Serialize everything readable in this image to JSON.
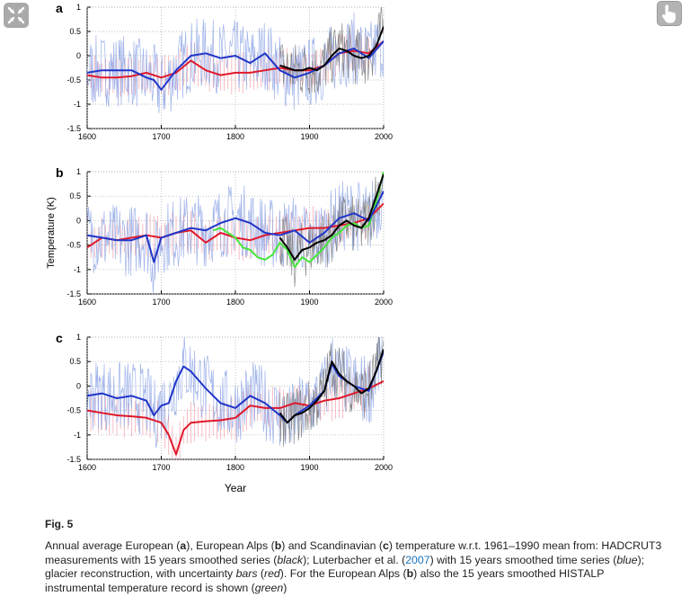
{
  "figure_label": "Fig. 5",
  "caption": {
    "p1": "Annual average European (",
    "b1": "a",
    "p2": "), European Alps (",
    "b2": "b",
    "p3": ") and Scandinavian (",
    "b3": "c",
    "p4": ") temperature w.r.t. 1961–1990 mean from: HADCRUT3 measurements with 15 years smoothed series (",
    "i1": "black",
    "p5": "); Luterbacher et al. (",
    "link": "2007",
    "p6": ") with 15 years smoothed time series (",
    "i2": "blue",
    "p7": "); glacier reconstruction, with uncertainty ",
    "i3": "bars",
    "p8": " (",
    "i4": "red",
    "p9": "). For the European Alps (",
    "b4": "b",
    "p10": ") also the 15 years smoothed HISTALP instrumental temperature record is shown (",
    "i5": "green",
    "p11": ")"
  },
  "icons": {
    "top_left": "expand-icon",
    "top_right": "touch-hand-icon"
  },
  "colors": {
    "blue": "#1f35c8",
    "red": "#e0182a",
    "black": "#000000",
    "green": "#46e63a",
    "light_blue": "#8ea6e6",
    "pink": "#f2a0a8",
    "grey": "#777777"
  },
  "chart_data": [
    {
      "type": "line",
      "panel_label": "a",
      "xlabel": "",
      "ylabel": "",
      "xlim": [
        1600,
        2000
      ],
      "ylim": [
        -1.5,
        1
      ],
      "xticks": [
        "1600",
        "1700",
        "1800",
        "1900",
        "2000"
      ],
      "yticks": [
        "1",
        "0.5",
        "0",
        "-0.5",
        "-1",
        "-1.5"
      ],
      "grid": true,
      "series": [
        {
          "color": "blue",
          "x": [
            1600,
            1620,
            1640,
            1660,
            1680,
            1690,
            1700,
            1720,
            1740,
            1760,
            1780,
            1800,
            1820,
            1830,
            1840,
            1860,
            1880,
            1900,
            1920,
            1940,
            1960,
            1980,
            2000
          ],
          "y": [
            -0.35,
            -0.3,
            -0.3,
            -0.3,
            -0.45,
            -0.5,
            -0.7,
            -0.3,
            0.0,
            0.05,
            -0.05,
            0.0,
            -0.15,
            -0.05,
            0.05,
            -0.3,
            -0.45,
            -0.35,
            -0.2,
            0.05,
            0.15,
            -0.05,
            0.3
          ]
        },
        {
          "color": "red",
          "x": [
            1600,
            1620,
            1640,
            1660,
            1680,
            1700,
            1720,
            1740,
            1760,
            1780,
            1800,
            1820,
            1840,
            1860,
            1880,
            1900,
            1920,
            1940,
            1960,
            1980,
            2000
          ],
          "y": [
            -0.4,
            -0.45,
            -0.45,
            -0.42,
            -0.35,
            -0.45,
            -0.35,
            -0.1,
            -0.3,
            -0.4,
            -0.35,
            -0.35,
            -0.3,
            -0.25,
            -0.3,
            -0.3,
            -0.2,
            0.05,
            0.1,
            0.05,
            0.3
          ]
        },
        {
          "color": "black",
          "x": [
            1860,
            1870,
            1880,
            1890,
            1900,
            1910,
            1920,
            1930,
            1940,
            1950,
            1960,
            1970,
            1980,
            1990,
            2000
          ],
          "y": [
            -0.2,
            -0.25,
            -0.3,
            -0.3,
            -0.25,
            -0.3,
            -0.2,
            0.0,
            0.15,
            0.1,
            0.0,
            -0.05,
            0.0,
            0.2,
            0.6
          ]
        }
      ]
    },
    {
      "type": "line",
      "panel_label": "b",
      "xlabel": "",
      "ylabel": "Temperature (K)",
      "xlim": [
        1600,
        2000
      ],
      "ylim": [
        -1.5,
        1
      ],
      "xticks": [
        "1600",
        "1700",
        "1800",
        "1900",
        "2000"
      ],
      "yticks": [
        "1",
        "0.5",
        "0",
        "-0.5",
        "-1",
        "-1.5"
      ],
      "grid": true,
      "series": [
        {
          "color": "blue",
          "x": [
            1600,
            1620,
            1640,
            1660,
            1680,
            1690,
            1700,
            1720,
            1740,
            1760,
            1780,
            1800,
            1820,
            1840,
            1860,
            1880,
            1900,
            1920,
            1940,
            1960,
            1980,
            2000
          ],
          "y": [
            -0.3,
            -0.35,
            -0.4,
            -0.4,
            -0.3,
            -0.85,
            -0.35,
            -0.25,
            -0.15,
            -0.2,
            -0.05,
            0.05,
            -0.05,
            -0.25,
            -0.3,
            -0.2,
            -0.45,
            -0.25,
            0.05,
            0.15,
            0.0,
            0.6
          ]
        },
        {
          "color": "red",
          "x": [
            1600,
            1620,
            1640,
            1660,
            1680,
            1700,
            1720,
            1740,
            1760,
            1780,
            1800,
            1820,
            1840,
            1860,
            1880,
            1900,
            1920,
            1940,
            1960,
            1980,
            2000
          ],
          "y": [
            -0.55,
            -0.35,
            -0.4,
            -0.35,
            -0.3,
            -0.35,
            -0.25,
            -0.2,
            -0.45,
            -0.25,
            -0.35,
            -0.4,
            -0.3,
            -0.25,
            -0.2,
            -0.15,
            -0.15,
            -0.1,
            -0.05,
            0.05,
            0.35
          ]
        },
        {
          "color": "green",
          "x": [
            1770,
            1780,
            1790,
            1800,
            1810,
            1820,
            1830,
            1840,
            1850,
            1860,
            1870,
            1880,
            1890,
            1900,
            1910,
            1920,
            1930,
            1940,
            1950,
            1960,
            1970,
            1980,
            1990,
            2000
          ],
          "y": [
            -0.2,
            -0.15,
            -0.25,
            -0.35,
            -0.55,
            -0.6,
            -0.75,
            -0.8,
            -0.7,
            -0.45,
            -0.6,
            -0.95,
            -0.75,
            -0.85,
            -0.7,
            -0.55,
            -0.35,
            -0.25,
            -0.1,
            -0.05,
            -0.15,
            -0.1,
            0.4,
            1.0
          ]
        },
        {
          "color": "black",
          "x": [
            1860,
            1870,
            1880,
            1890,
            1900,
            1910,
            1920,
            1930,
            1940,
            1950,
            1960,
            1970,
            1980,
            1990,
            2000
          ],
          "y": [
            -0.35,
            -0.55,
            -0.8,
            -0.6,
            -0.55,
            -0.45,
            -0.4,
            -0.3,
            -0.1,
            0.0,
            -0.1,
            -0.15,
            0.05,
            0.5,
            0.95
          ]
        }
      ]
    },
    {
      "type": "line",
      "panel_label": "c",
      "xlabel": "Year",
      "ylabel": "",
      "xlim": [
        1600,
        2000
      ],
      "ylim": [
        -1.5,
        1
      ],
      "xticks": [
        "1600",
        "1700",
        "1800",
        "1900",
        "2000"
      ],
      "yticks": [
        "1",
        "0.5",
        "0",
        "-0.5",
        "-1",
        "-1.5"
      ],
      "grid": true,
      "series": [
        {
          "color": "blue",
          "x": [
            1600,
            1620,
            1640,
            1660,
            1680,
            1690,
            1700,
            1710,
            1720,
            1730,
            1740,
            1760,
            1780,
            1800,
            1820,
            1840,
            1860,
            1870,
            1880,
            1900,
            1920,
            1930,
            1940,
            1960,
            1980,
            2000
          ],
          "y": [
            -0.2,
            -0.15,
            -0.25,
            -0.2,
            -0.3,
            -0.6,
            -0.4,
            -0.35,
            0.1,
            0.4,
            0.3,
            -0.05,
            -0.35,
            -0.45,
            -0.2,
            -0.35,
            -0.6,
            -0.75,
            -0.6,
            -0.4,
            -0.1,
            0.45,
            0.2,
            0.0,
            -0.1,
            0.7
          ]
        },
        {
          "color": "red",
          "x": [
            1600,
            1620,
            1640,
            1660,
            1680,
            1700,
            1710,
            1720,
            1730,
            1740,
            1760,
            1780,
            1800,
            1820,
            1840,
            1860,
            1880,
            1900,
            1920,
            1940,
            1960,
            1980,
            2000
          ],
          "y": [
            -0.5,
            -0.55,
            -0.6,
            -0.62,
            -0.65,
            -0.75,
            -1.0,
            -1.4,
            -0.9,
            -0.75,
            -0.72,
            -0.7,
            -0.65,
            -0.4,
            -0.45,
            -0.45,
            -0.35,
            -0.4,
            -0.3,
            -0.25,
            -0.15,
            -0.05,
            0.1
          ]
        },
        {
          "color": "black",
          "x": [
            1860,
            1870,
            1880,
            1890,
            1900,
            1910,
            1920,
            1930,
            1940,
            1950,
            1960,
            1970,
            1980,
            1990,
            2000
          ],
          "y": [
            -0.55,
            -0.75,
            -0.6,
            -0.55,
            -0.45,
            -0.3,
            -0.1,
            0.5,
            0.25,
            0.1,
            0.0,
            -0.15,
            -0.05,
            0.3,
            0.75
          ]
        }
      ]
    }
  ]
}
